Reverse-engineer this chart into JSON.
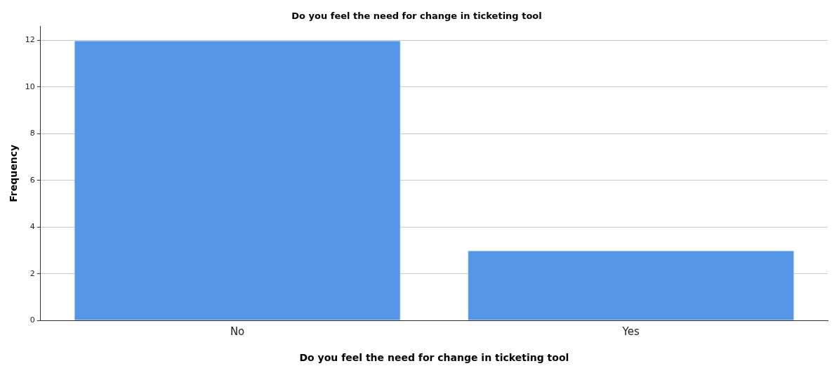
{
  "chart_data": {
    "type": "bar",
    "title": "Do you feel the need for change in ticketing tool",
    "xlabel": "Do you feel the need for change in ticketing tool",
    "ylabel": "Frequency",
    "categories": [
      "No",
      "Yes"
    ],
    "values": [
      12,
      3
    ],
    "color": "#5596e6",
    "ylim": [
      0,
      12.6
    ],
    "yticks": [
      0,
      2,
      4,
      6,
      8,
      10,
      12
    ],
    "grid": "y",
    "legend": false
  }
}
